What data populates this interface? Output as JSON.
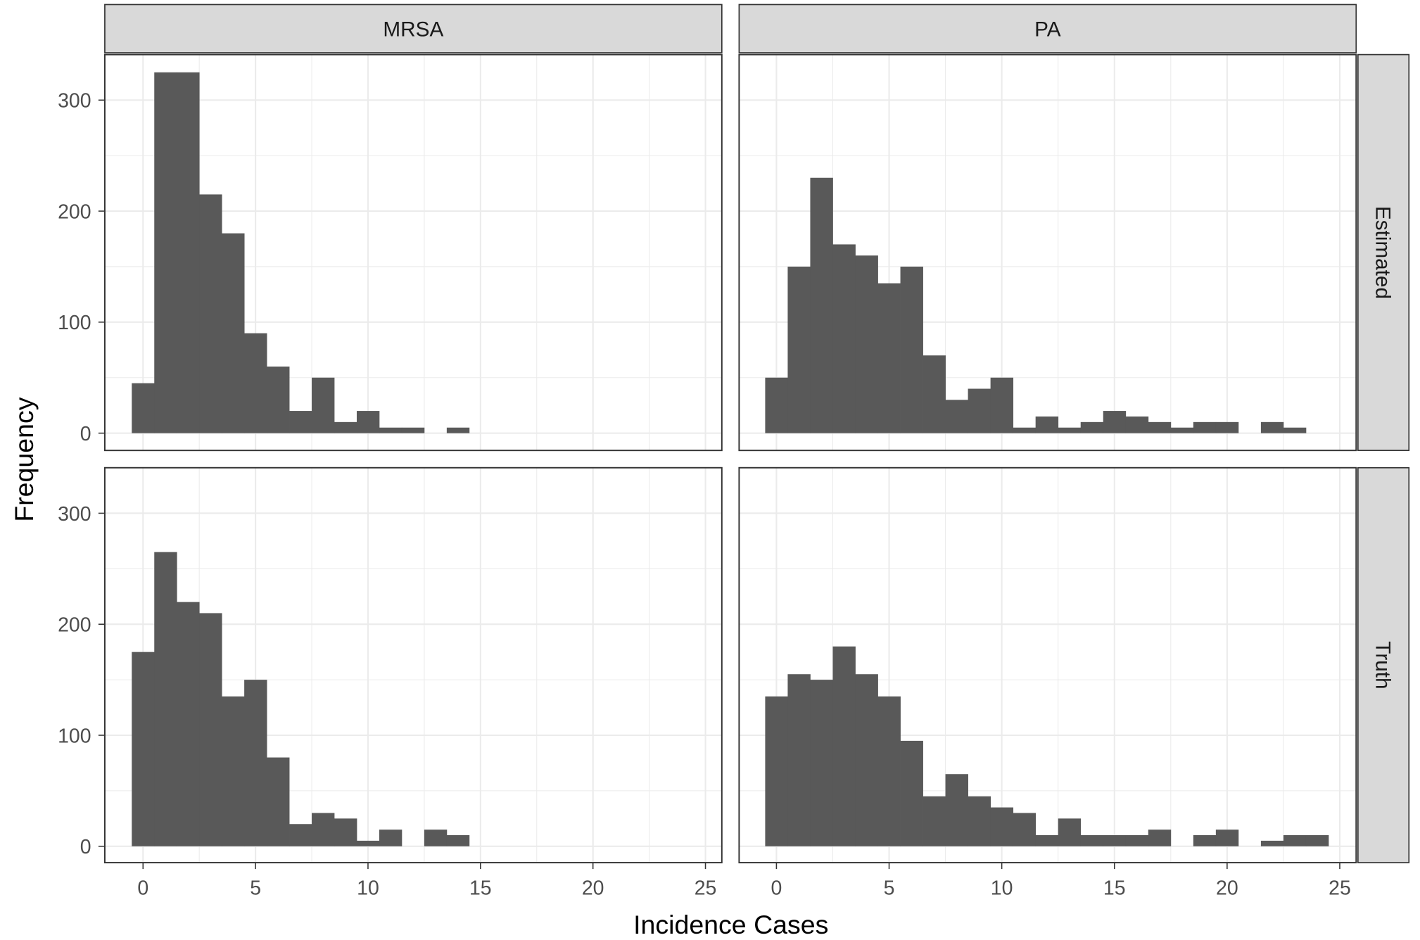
{
  "chart_data": {
    "type": "bar",
    "subtype": "faceted histogram",
    "xlabel": "Incidence Cases",
    "ylabel": "Frequency",
    "binwidth": 1,
    "xlim": [
      -1.3,
      26.3
    ],
    "ylim": [
      0,
      340
    ],
    "x_ticks": [
      "0",
      "5",
      "10",
      "15",
      "20",
      "25"
    ],
    "y_ticks": [
      "0",
      "100",
      "200",
      "300"
    ],
    "grid": true,
    "bar_color": "#595959",
    "facet_cols": [
      "MRSA",
      "PA"
    ],
    "facet_rows": [
      "Estimated",
      "Truth"
    ],
    "panels": [
      {
        "col": "MRSA",
        "row": "Estimated",
        "bins": [
          0,
          1,
          2,
          3,
          4,
          5,
          6,
          7,
          8,
          9,
          10,
          11,
          12,
          13,
          14
        ],
        "values": [
          45,
          325,
          325,
          215,
          180,
          90,
          60,
          20,
          50,
          10,
          20,
          5,
          5,
          0,
          5
        ]
      },
      {
        "col": "PA",
        "row": "Estimated",
        "bins": [
          0,
          1,
          2,
          3,
          4,
          5,
          6,
          7,
          8,
          9,
          10,
          11,
          12,
          13,
          14,
          15,
          16,
          17,
          18,
          19,
          20,
          21,
          22,
          23
        ],
        "values": [
          50,
          150,
          230,
          170,
          160,
          135,
          150,
          70,
          30,
          40,
          50,
          5,
          15,
          5,
          10,
          20,
          15,
          10,
          5,
          10,
          10,
          0,
          10,
          5
        ]
      },
      {
        "col": "MRSA",
        "row": "Truth",
        "bins": [
          0,
          1,
          2,
          3,
          4,
          5,
          6,
          7,
          8,
          9,
          10,
          11,
          12,
          13,
          14
        ],
        "values": [
          175,
          265,
          220,
          210,
          135,
          150,
          80,
          20,
          30,
          25,
          5,
          15,
          0,
          15,
          10
        ]
      },
      {
        "col": "PA",
        "row": "Truth",
        "bins": [
          0,
          1,
          2,
          3,
          4,
          5,
          6,
          7,
          8,
          9,
          10,
          11,
          12,
          13,
          14,
          15,
          16,
          17,
          18,
          19,
          20,
          21,
          22,
          23,
          24
        ],
        "values": [
          135,
          155,
          150,
          180,
          155,
          135,
          95,
          45,
          65,
          45,
          35,
          30,
          10,
          25,
          10,
          10,
          10,
          15,
          0,
          10,
          15,
          0,
          5,
          10,
          10
        ]
      }
    ]
  }
}
